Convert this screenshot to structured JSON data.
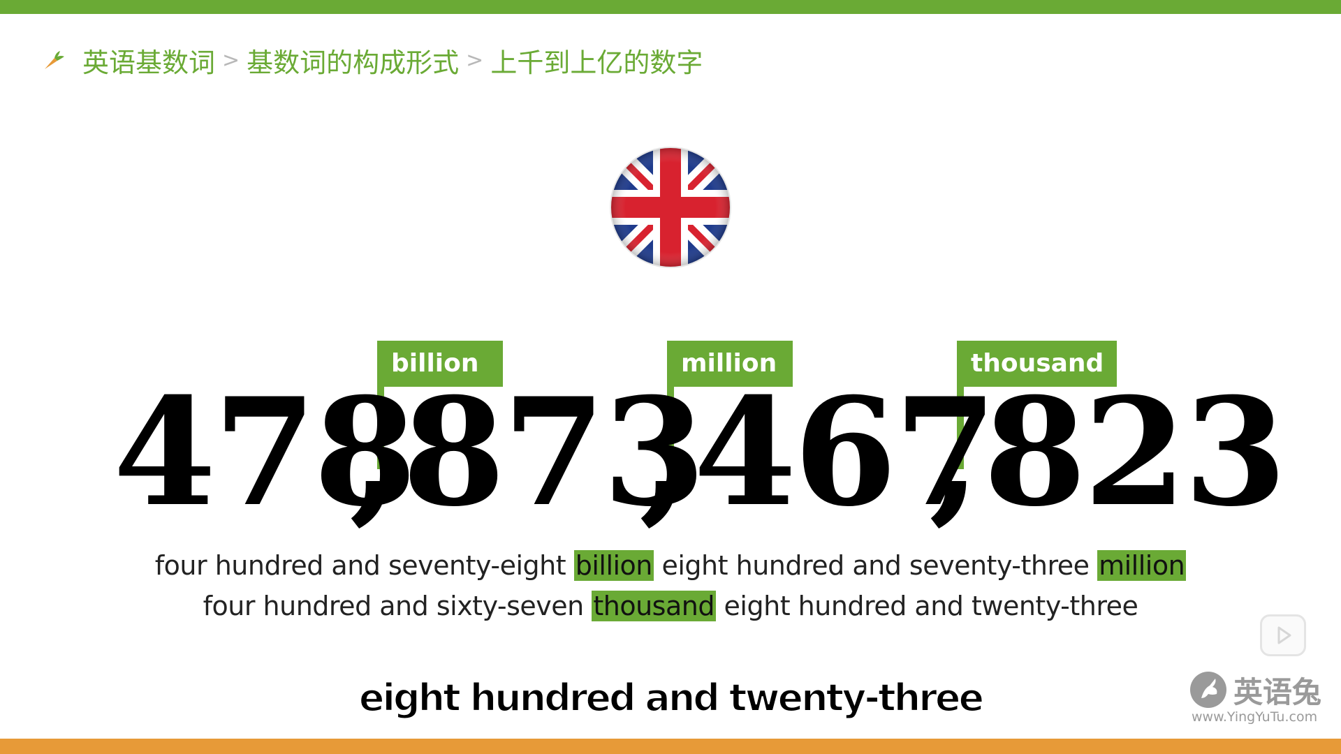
{
  "breadcrumb": {
    "items": [
      "英语基数词",
      "基数词的构成形式",
      "上千到上亿的数字"
    ],
    "separator": ">"
  },
  "flag": {
    "icon": "uk-flag-icon"
  },
  "number": {
    "groups": [
      "478",
      "873",
      "467",
      "823"
    ],
    "separator": ",",
    "labels": [
      "billion",
      "million",
      "thousand"
    ]
  },
  "words": {
    "line1": {
      "part1": "four hundred and seventy-eight",
      "hl1": "billion",
      "part2": "eight hundred and seventy-three",
      "hl2": "million"
    },
    "line2": {
      "part1": "four hundred and sixty-seven",
      "hl1": "thousand",
      "part2": "eight hundred and twenty-three"
    }
  },
  "subtitle": "eight hundred and twenty-three",
  "watermark": {
    "title": "英语兔",
    "url": "www.YingYuTu.com"
  },
  "colors": {
    "accent_green": "#6aaa35",
    "bottom_orange": "#e79a38"
  }
}
